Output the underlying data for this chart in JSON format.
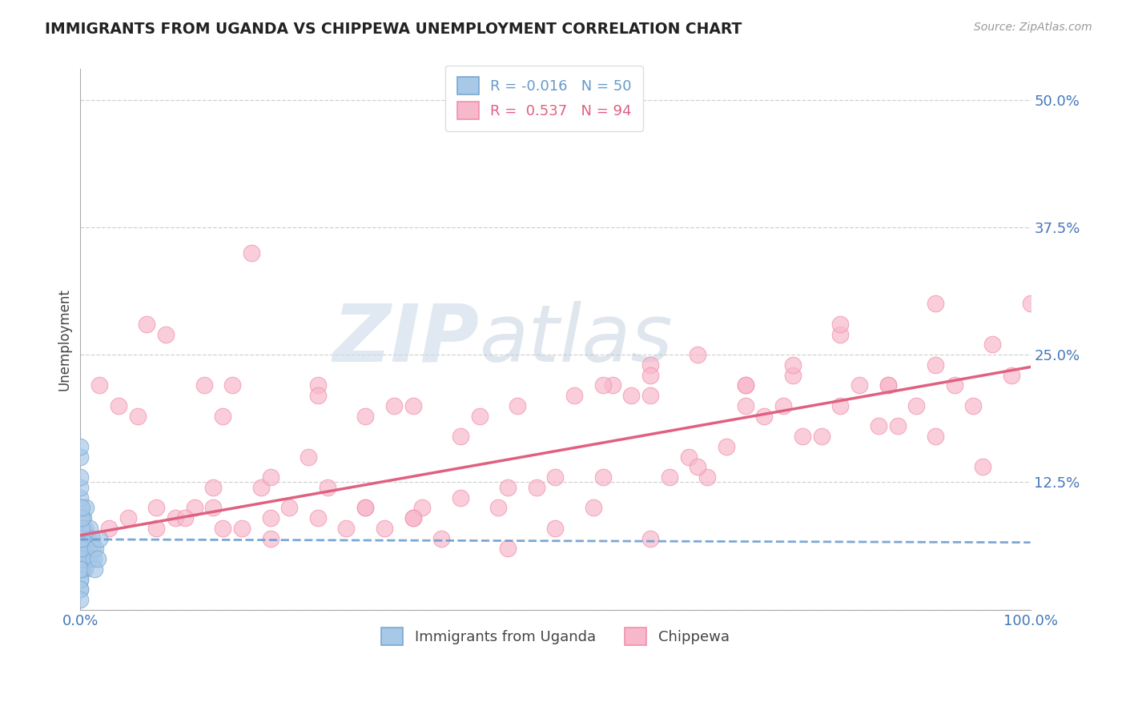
{
  "title": "IMMIGRANTS FROM UGANDA VS CHIPPEWA UNEMPLOYMENT CORRELATION CHART",
  "source_text": "Source: ZipAtlas.com",
  "ylabel": "Unemployment",
  "xlim": [
    0.0,
    1.0
  ],
  "ylim": [
    0.0,
    0.53
  ],
  "yticks": [
    0.0,
    0.125,
    0.25,
    0.375,
    0.5
  ],
  "ytick_labels": [
    "",
    "12.5%",
    "25.0%",
    "37.5%",
    "50.0%"
  ],
  "series1_name": "Immigrants from Uganda",
  "series1_R": "-0.016",
  "series1_N": "50",
  "series1_color": "#a8c8e8",
  "series1_edge": "#78a8d0",
  "series2_name": "Chippewa",
  "series2_R": "0.537",
  "series2_N": "94",
  "series2_color": "#f8b8cc",
  "series2_edge": "#f090a8",
  "watermark_zip": "ZIP",
  "watermark_atlas": "atlas",
  "watermark_color_zip": "#c8d8e8",
  "watermark_color_atlas": "#b8c8d8",
  "title_color": "#222222",
  "axis_label_color": "#444444",
  "tick_color": "#4477bb",
  "grid_color": "#cccccc",
  "background_color": "#ffffff",
  "trend1_color": "#6699cc",
  "trend2_color": "#e06080",
  "series1_x": [
    0.0,
    0.0,
    0.0,
    0.0,
    0.0,
    0.0,
    0.0,
    0.0,
    0.0,
    0.0,
    0.002,
    0.002,
    0.002,
    0.002,
    0.003,
    0.003,
    0.003,
    0.004,
    0.004,
    0.005,
    0.005,
    0.006,
    0.006,
    0.007,
    0.008,
    0.009,
    0.01,
    0.011,
    0.012,
    0.013,
    0.001,
    0.001,
    0.001,
    0.001,
    0.001,
    0.001,
    0.001,
    0.0,
    0.0,
    0.0,
    0.0,
    0.0,
    0.0,
    0.014,
    0.015,
    0.016,
    0.018,
    0.02,
    0.0,
    0.0
  ],
  "series1_y": [
    0.04,
    0.05,
    0.06,
    0.07,
    0.08,
    0.09,
    0.1,
    0.11,
    0.03,
    0.02,
    0.05,
    0.06,
    0.07,
    0.08,
    0.04,
    0.06,
    0.09,
    0.05,
    0.07,
    0.04,
    0.08,
    0.06,
    0.1,
    0.05,
    0.07,
    0.06,
    0.08,
    0.05,
    0.07,
    0.06,
    0.04,
    0.05,
    0.06,
    0.07,
    0.08,
    0.09,
    0.1,
    0.12,
    0.13,
    0.03,
    0.04,
    0.02,
    0.01,
    0.05,
    0.04,
    0.06,
    0.05,
    0.07,
    0.15,
    0.16
  ],
  "series2_x": [
    0.02,
    0.04,
    0.06,
    0.07,
    0.08,
    0.09,
    0.1,
    0.12,
    0.13,
    0.14,
    0.15,
    0.16,
    0.17,
    0.18,
    0.19,
    0.2,
    0.22,
    0.24,
    0.25,
    0.26,
    0.28,
    0.3,
    0.32,
    0.33,
    0.35,
    0.36,
    0.38,
    0.4,
    0.42,
    0.44,
    0.46,
    0.48,
    0.5,
    0.52,
    0.54,
    0.56,
    0.58,
    0.6,
    0.62,
    0.64,
    0.66,
    0.68,
    0.7,
    0.72,
    0.74,
    0.76,
    0.78,
    0.8,
    0.82,
    0.84,
    0.86,
    0.88,
    0.9,
    0.92,
    0.94,
    0.96,
    0.98,
    1.0,
    0.03,
    0.05,
    0.08,
    0.11,
    0.14,
    0.2,
    0.25,
    0.3,
    0.35,
    0.4,
    0.45,
    0.55,
    0.6,
    0.65,
    0.7,
    0.75,
    0.8,
    0.85,
    0.9,
    0.3,
    0.35,
    0.55,
    0.6,
    0.65,
    0.7,
    0.75,
    0.8,
    0.85,
    0.9,
    0.95,
    0.15,
    0.2,
    0.25,
    0.45,
    0.5,
    0.6
  ],
  "series2_y": [
    0.22,
    0.2,
    0.19,
    0.28,
    0.1,
    0.27,
    0.09,
    0.1,
    0.22,
    0.12,
    0.19,
    0.22,
    0.08,
    0.35,
    0.12,
    0.09,
    0.1,
    0.15,
    0.22,
    0.12,
    0.08,
    0.1,
    0.08,
    0.2,
    0.09,
    0.1,
    0.07,
    0.17,
    0.19,
    0.1,
    0.2,
    0.12,
    0.13,
    0.21,
    0.1,
    0.22,
    0.21,
    0.21,
    0.13,
    0.15,
    0.13,
    0.16,
    0.2,
    0.19,
    0.2,
    0.17,
    0.17,
    0.2,
    0.22,
    0.18,
    0.18,
    0.2,
    0.17,
    0.22,
    0.2,
    0.26,
    0.23,
    0.3,
    0.08,
    0.09,
    0.08,
    0.09,
    0.1,
    0.13,
    0.21,
    0.1,
    0.09,
    0.11,
    0.12,
    0.13,
    0.24,
    0.14,
    0.22,
    0.23,
    0.27,
    0.22,
    0.3,
    0.19,
    0.2,
    0.22,
    0.23,
    0.25,
    0.22,
    0.24,
    0.28,
    0.22,
    0.24,
    0.14,
    0.08,
    0.07,
    0.09,
    0.06,
    0.08,
    0.07
  ],
  "trend1_x": [
    0.0,
    1.0
  ],
  "trend1_y": [
    0.069,
    0.066
  ],
  "trend2_x": [
    0.0,
    1.0
  ],
  "trend2_y": [
    0.073,
    0.238
  ]
}
